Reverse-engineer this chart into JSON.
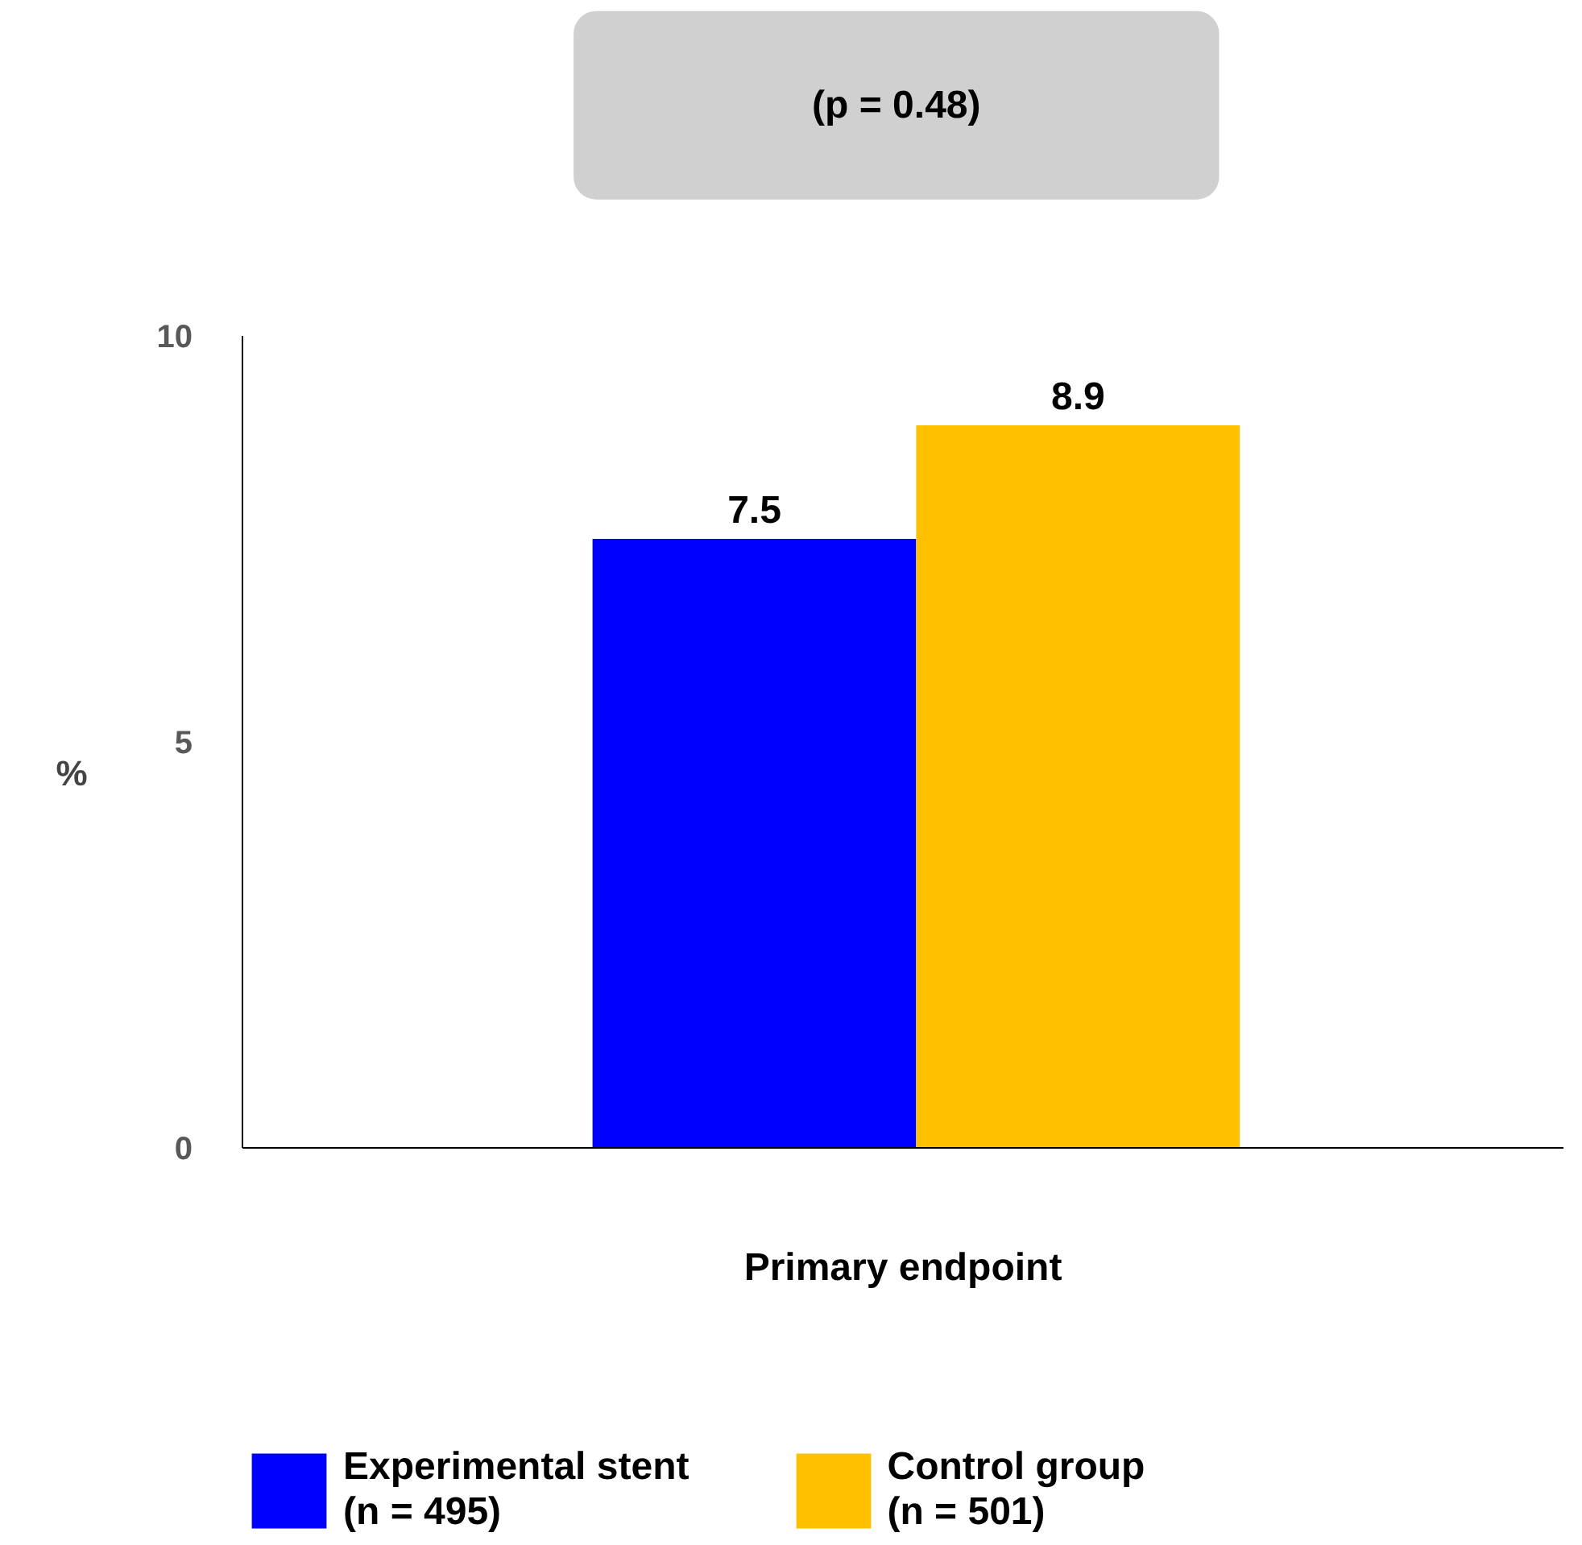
{
  "chart_data": {
    "type": "bar",
    "categories": [
      null
    ],
    "xlabel": "Primary endpoint",
    "ylabel": "%",
    "series": [
      {
        "name": "Experimental stent\n(n = 495)",
        "color": "#0000ff",
        "values": [
          7.5
        ]
      },
      {
        "name": "Control group\n(n = 501)",
        "color": "#ffc000",
        "values": [
          8.9
        ]
      }
    ],
    "ylim": [
      0,
      10
    ],
    "yticks": [
      0,
      5,
      10
    ],
    "grid": false,
    "legend": "bottom",
    "data_labels": true,
    "annotations": [
      "(p = 0.48)"
    ]
  }
}
